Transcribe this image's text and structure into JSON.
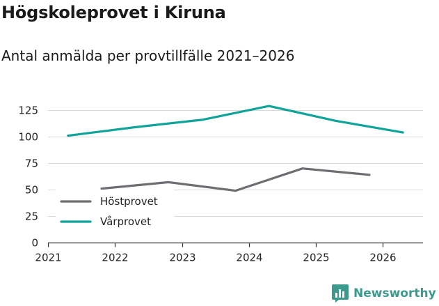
{
  "header": {
    "title": "Högskoleprovet i Kiruna",
    "subtitle": "Antal anmälda per provtillfälle 2021–2026"
  },
  "brand": {
    "name": "Newsworthy",
    "color": "#3b9a8c",
    "icon": "bar-chart-speech-bubble-icon"
  },
  "chart_data": {
    "type": "line",
    "title": "Högskoleprovet i Kiruna",
    "subtitle": "Antal anmälda per provtillfälle 2021–2026",
    "xlabel": "",
    "ylabel": "",
    "xlim": [
      2021,
      2026.6
    ],
    "ylim": [
      0,
      135
    ],
    "x_ticks": [
      2021,
      2022,
      2023,
      2024,
      2025,
      2026
    ],
    "y_ticks": [
      0,
      25,
      50,
      75,
      100,
      125
    ],
    "grid": true,
    "legend_position": "bottom-left",
    "series": [
      {
        "name": "Höstprovet",
        "color": "#6d6d72",
        "x": [
          2021.8,
          2022.8,
          2023.8,
          2024.8,
          2025.8
        ],
        "values": [
          51,
          57,
          49,
          70,
          64
        ]
      },
      {
        "name": "Vårprovet",
        "color": "#0fa39a",
        "x": [
          2021.3,
          2022.3,
          2023.3,
          2024.3,
          2025.3,
          2026.3
        ],
        "values": [
          101,
          109,
          116,
          129,
          115,
          104
        ]
      }
    ]
  }
}
